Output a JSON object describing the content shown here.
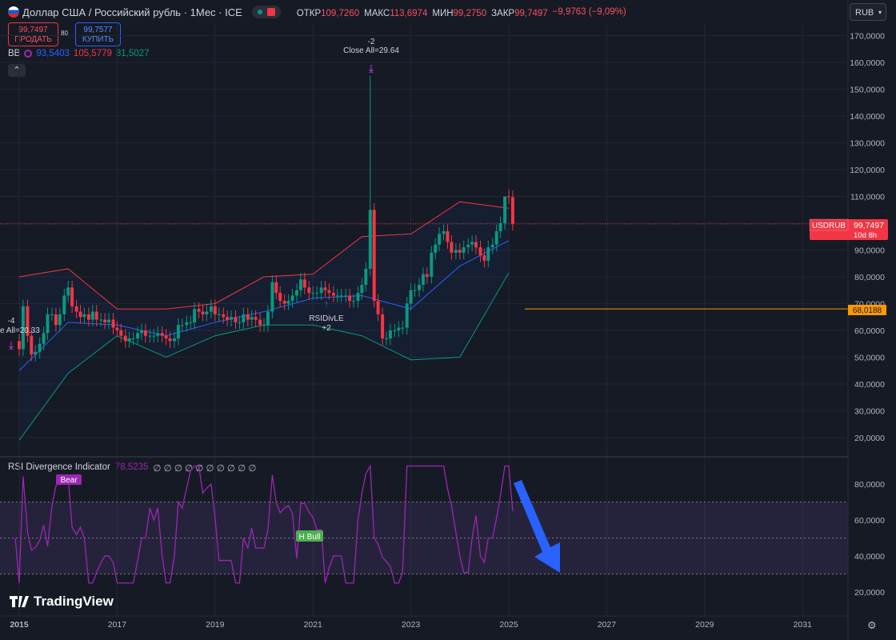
{
  "header": {
    "title": "Доллар США / Российский рубль · 1Мес · ICE",
    "ohlc": [
      {
        "k": "ОТКР",
        "v": "109,7260"
      },
      {
        "k": "МАКС",
        "v": "113,6974"
      },
      {
        "k": "МИН",
        "v": "99,2750"
      },
      {
        "k": "ЗАКР",
        "v": "99,7497"
      }
    ],
    "change": "−9,9763 (−9,09%)",
    "currency": "RUB"
  },
  "trade": {
    "sell_price": "99,7497",
    "sell_label": "ПРОДАТЬ",
    "spread": "80",
    "buy_price": "99,7577",
    "buy_label": "КУПИТЬ"
  },
  "bb": {
    "label": "BB",
    "basis": "93,5403",
    "upper": "105,5779",
    "lower": "81,5027"
  },
  "rsi_panel": {
    "label": "RSI Divergence Indicator",
    "value": "78,5235",
    "placeholders": "∅ ∅ ∅ ∅ ∅ ∅ ∅ ∅ ∅ ∅"
  },
  "annotations": {
    "top_label1": "-2",
    "top_label2": "Close All=29.64",
    "mid_label1": "RSIDivLE",
    "mid_label2": "+2",
    "left_label1": "-4",
    "left_label2": "e All=20.33",
    "bear": "Bear",
    "hbull": "H Bull"
  },
  "price_tag": {
    "symbol": "USDRUB",
    "price": "99,7497",
    "countdown": "10d 8h"
  },
  "hline_tag": "68,0188",
  "logo": "TradingView",
  "colors": {
    "bg": "#161a25",
    "up": "#089981",
    "down": "#f23645",
    "bb_basis": "#2962ff",
    "bb_upper": "#f23645",
    "bb_lower": "#089981",
    "rsi": "#9c27b0",
    "hline": "#ff9800",
    "arrow": "#2962ff"
  },
  "chart_data": {
    "type": "candlestick",
    "y_axis_labels": [
      "170,0000",
      "160,0000",
      "150,0000",
      "140,0000",
      "130,0000",
      "120,0000",
      "110,0000",
      "100,0000",
      "90,0000",
      "80,0000",
      "70,0000",
      "60,0000",
      "50,0000",
      "40,0000",
      "30,0000",
      "20,0000"
    ],
    "x_axis_labels": [
      "2015",
      "2017",
      "2019",
      "2021",
      "2023",
      "2025",
      "2027",
      "2029",
      "2031"
    ],
    "ylim": [
      15,
      175
    ],
    "close_series": [
      {
        "t": 2014.92,
        "c": 56
      },
      {
        "t": 2015.0,
        "c": 53
      },
      {
        "t": 2015.08,
        "c": 69
      },
      {
        "t": 2015.17,
        "c": 58
      },
      {
        "t": 2015.25,
        "c": 51
      },
      {
        "t": 2015.33,
        "c": 52
      },
      {
        "t": 2015.42,
        "c": 55
      },
      {
        "t": 2015.5,
        "c": 59
      },
      {
        "t": 2015.58,
        "c": 66
      },
      {
        "t": 2015.67,
        "c": 66
      },
      {
        "t": 2015.75,
        "c": 62
      },
      {
        "t": 2015.83,
        "c": 66
      },
      {
        "t": 2015.92,
        "c": 73
      },
      {
        "t": 2016.0,
        "c": 76
      },
      {
        "t": 2016.08,
        "c": 69
      },
      {
        "t": 2016.17,
        "c": 67
      },
      {
        "t": 2016.25,
        "c": 65
      },
      {
        "t": 2016.33,
        "c": 66
      },
      {
        "t": 2016.42,
        "c": 64
      },
      {
        "t": 2016.5,
        "c": 67
      },
      {
        "t": 2016.58,
        "c": 64
      },
      {
        "t": 2016.67,
        "c": 64
      },
      {
        "t": 2016.75,
        "c": 63
      },
      {
        "t": 2016.83,
        "c": 64
      },
      {
        "t": 2016.92,
        "c": 61
      },
      {
        "t": 2017.0,
        "c": 60
      },
      {
        "t": 2017.08,
        "c": 58
      },
      {
        "t": 2017.17,
        "c": 56
      },
      {
        "t": 2017.25,
        "c": 57
      },
      {
        "t": 2017.33,
        "c": 57
      },
      {
        "t": 2017.42,
        "c": 59
      },
      {
        "t": 2017.5,
        "c": 60
      },
      {
        "t": 2017.58,
        "c": 58
      },
      {
        "t": 2017.67,
        "c": 58
      },
      {
        "t": 2017.75,
        "c": 58
      },
      {
        "t": 2017.83,
        "c": 59
      },
      {
        "t": 2017.92,
        "c": 58
      },
      {
        "t": 2018.0,
        "c": 57
      },
      {
        "t": 2018.08,
        "c": 56
      },
      {
        "t": 2018.17,
        "c": 57
      },
      {
        "t": 2018.25,
        "c": 62
      },
      {
        "t": 2018.33,
        "c": 62
      },
      {
        "t": 2018.42,
        "c": 63
      },
      {
        "t": 2018.5,
        "c": 63
      },
      {
        "t": 2018.58,
        "c": 68
      },
      {
        "t": 2018.67,
        "c": 67
      },
      {
        "t": 2018.75,
        "c": 66
      },
      {
        "t": 2018.83,
        "c": 67
      },
      {
        "t": 2018.92,
        "c": 69
      },
      {
        "t": 2019.0,
        "c": 66
      },
      {
        "t": 2019.08,
        "c": 66
      },
      {
        "t": 2019.17,
        "c": 65
      },
      {
        "t": 2019.25,
        "c": 64
      },
      {
        "t": 2019.33,
        "c": 65
      },
      {
        "t": 2019.42,
        "c": 63
      },
      {
        "t": 2019.5,
        "c": 63
      },
      {
        "t": 2019.58,
        "c": 66
      },
      {
        "t": 2019.67,
        "c": 64
      },
      {
        "t": 2019.75,
        "c": 65
      },
      {
        "t": 2019.83,
        "c": 64
      },
      {
        "t": 2019.92,
        "c": 62
      },
      {
        "t": 2020.0,
        "c": 62
      },
      {
        "t": 2020.08,
        "c": 67
      },
      {
        "t": 2020.17,
        "c": 78
      },
      {
        "t": 2020.25,
        "c": 74
      },
      {
        "t": 2020.33,
        "c": 71
      },
      {
        "t": 2020.42,
        "c": 70
      },
      {
        "t": 2020.5,
        "c": 71
      },
      {
        "t": 2020.58,
        "c": 73
      },
      {
        "t": 2020.67,
        "c": 75
      },
      {
        "t": 2020.75,
        "c": 79
      },
      {
        "t": 2020.83,
        "c": 76
      },
      {
        "t": 2020.92,
        "c": 74
      },
      {
        "t": 2021.0,
        "c": 74
      },
      {
        "t": 2021.08,
        "c": 74
      },
      {
        "t": 2021.17,
        "c": 76
      },
      {
        "t": 2021.25,
        "c": 75
      },
      {
        "t": 2021.33,
        "c": 74
      },
      {
        "t": 2021.42,
        "c": 73
      },
      {
        "t": 2021.5,
        "c": 73
      },
      {
        "t": 2021.58,
        "c": 73
      },
      {
        "t": 2021.67,
        "c": 73
      },
      {
        "t": 2021.75,
        "c": 71
      },
      {
        "t": 2021.83,
        "c": 71
      },
      {
        "t": 2021.92,
        "c": 74
      },
      {
        "t": 2022.0,
        "c": 77
      },
      {
        "t": 2022.08,
        "c": 83
      },
      {
        "t": 2022.17,
        "c": 105
      },
      {
        "t": 2022.25,
        "c": 71
      },
      {
        "t": 2022.33,
        "c": 66
      },
      {
        "t": 2022.42,
        "c": 57
      },
      {
        "t": 2022.5,
        "c": 57
      },
      {
        "t": 2022.58,
        "c": 60
      },
      {
        "t": 2022.67,
        "c": 60
      },
      {
        "t": 2022.75,
        "c": 61
      },
      {
        "t": 2022.83,
        "c": 61
      },
      {
        "t": 2022.92,
        "c": 70
      },
      {
        "t": 2023.0,
        "c": 75
      },
      {
        "t": 2023.08,
        "c": 75
      },
      {
        "t": 2023.17,
        "c": 77
      },
      {
        "t": 2023.25,
        "c": 81
      },
      {
        "t": 2023.33,
        "c": 80
      },
      {
        "t": 2023.42,
        "c": 89
      },
      {
        "t": 2023.5,
        "c": 92
      },
      {
        "t": 2023.58,
        "c": 96
      },
      {
        "t": 2023.67,
        "c": 97
      },
      {
        "t": 2023.75,
        "c": 93
      },
      {
        "t": 2023.83,
        "c": 89
      },
      {
        "t": 2023.92,
        "c": 90
      },
      {
        "t": 2024.0,
        "c": 89
      },
      {
        "t": 2024.08,
        "c": 91
      },
      {
        "t": 2024.17,
        "c": 92
      },
      {
        "t": 2024.25,
        "c": 93
      },
      {
        "t": 2024.33,
        "c": 91
      },
      {
        "t": 2024.42,
        "c": 88
      },
      {
        "t": 2024.5,
        "c": 86
      },
      {
        "t": 2024.58,
        "c": 91
      },
      {
        "t": 2024.67,
        "c": 92
      },
      {
        "t": 2024.75,
        "c": 97
      },
      {
        "t": 2024.83,
        "c": 100
      },
      {
        "t": 2024.92,
        "c": 110
      },
      {
        "t": 2025.0,
        "c": 109.7
      },
      {
        "t": 2025.08,
        "c": 99.75
      }
    ],
    "bb_upper": [
      [
        2015,
        80
      ],
      [
        2016,
        83
      ],
      [
        2017,
        68
      ],
      [
        2018,
        68
      ],
      [
        2019,
        70
      ],
      [
        2020,
        80
      ],
      [
        2021,
        81
      ],
      [
        2022,
        95
      ],
      [
        2023,
        96
      ],
      [
        2024,
        108
      ],
      [
        2025,
        105.6
      ]
    ],
    "bb_basis": [
      [
        2015,
        45
      ],
      [
        2016,
        63
      ],
      [
        2017,
        62
      ],
      [
        2018,
        58
      ],
      [
        2019,
        63
      ],
      [
        2020,
        67
      ],
      [
        2021,
        72
      ],
      [
        2022,
        73
      ],
      [
        2023,
        68
      ],
      [
        2024,
        84
      ],
      [
        2025,
        93.5
      ]
    ],
    "bb_lower": [
      [
        2015,
        19
      ],
      [
        2016,
        44
      ],
      [
        2017,
        58
      ],
      [
        2018,
        50
      ],
      [
        2019,
        58
      ],
      [
        2020,
        62
      ],
      [
        2021,
        62
      ],
      [
        2022,
        58
      ],
      [
        2023,
        49
      ],
      [
        2024,
        50
      ],
      [
        2025,
        81.5
      ]
    ],
    "horizontal_line": 68.0188,
    "rsi_ylim": [
      15,
      90
    ],
    "rsi_levels": [
      70,
      50,
      30
    ],
    "rsi_axis_labels": [
      "80,0000",
      "60,0000",
      "40,0000",
      "20,0000"
    ]
  }
}
